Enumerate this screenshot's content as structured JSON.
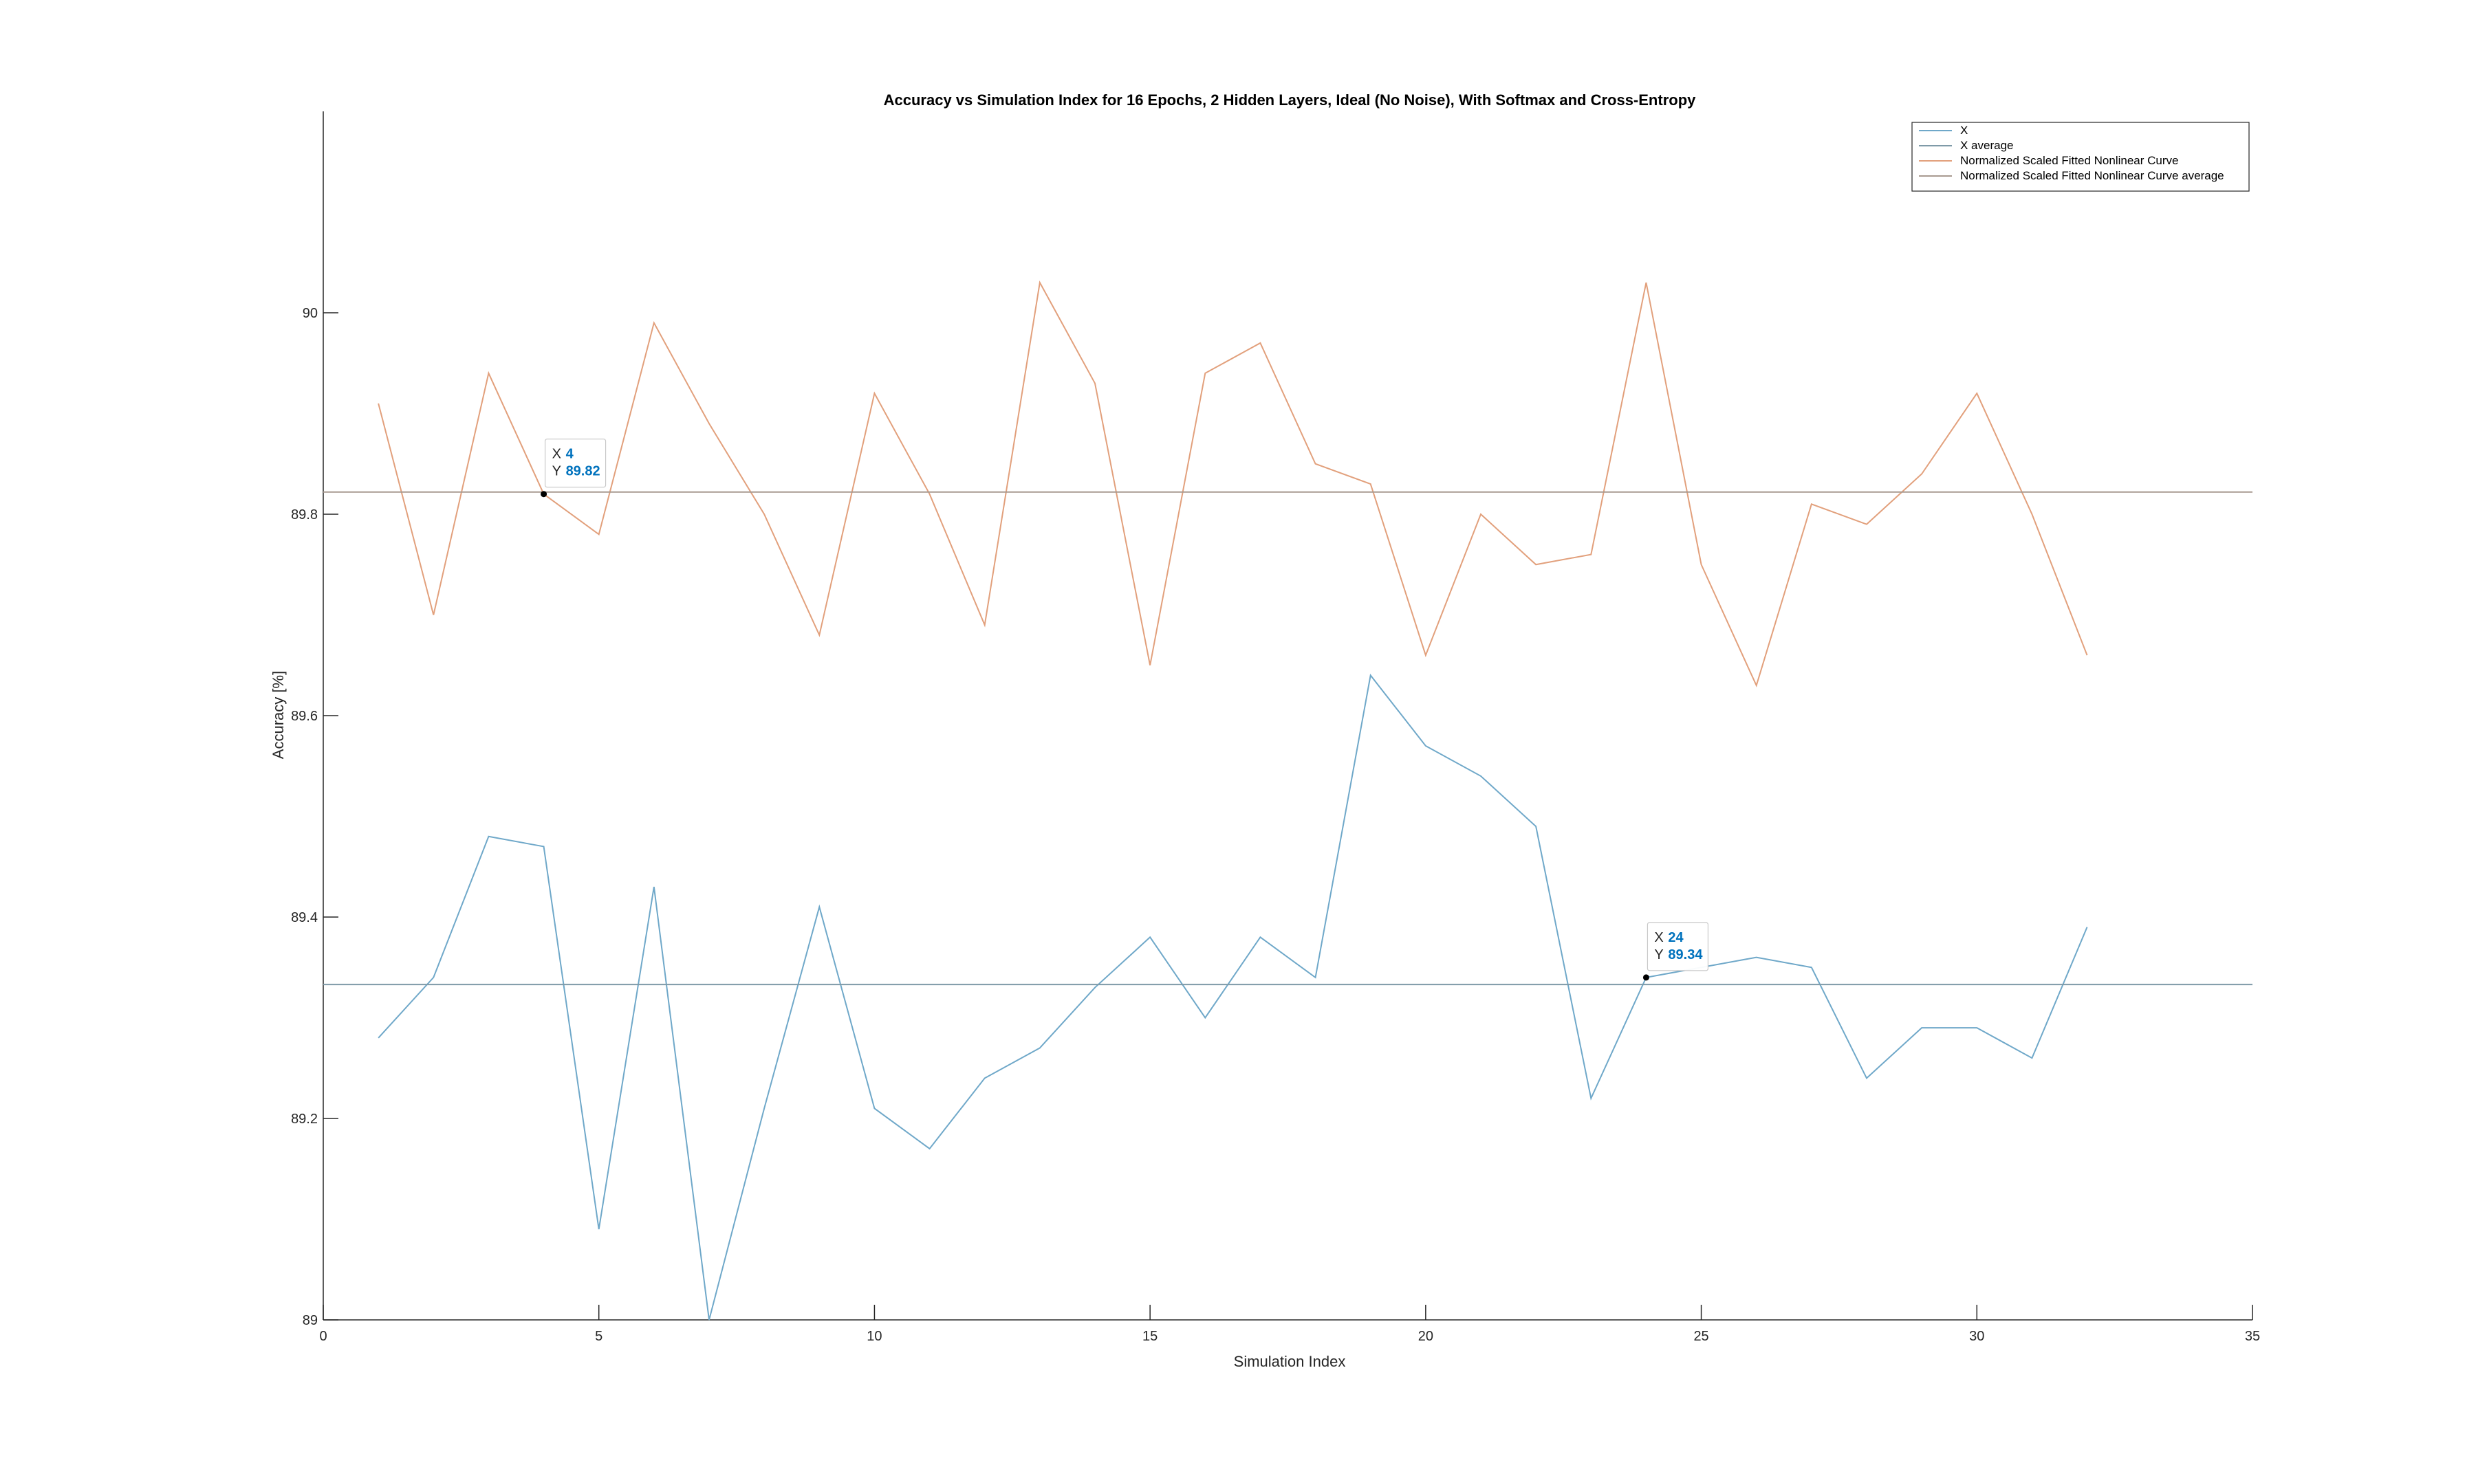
{
  "chart_data": {
    "type": "line",
    "title": "Accuracy vs Simulation Index for 16 Epochs, 2 Hidden Layers, Ideal (No Noise), With Softmax and Cross-Entropy",
    "xlabel": "Simulation Index",
    "ylabel": "Accuracy [%]",
    "xlim": [
      0,
      35
    ],
    "ylim": [
      89,
      90.2
    ],
    "xticks": [
      0,
      5,
      10,
      15,
      20,
      25,
      30,
      35
    ],
    "yticks": [
      89,
      89.2,
      89.4,
      89.6,
      89.8,
      90
    ],
    "grid": false,
    "legend_position": "top-right",
    "x": [
      1,
      2,
      3,
      4,
      5,
      6,
      7,
      8,
      9,
      10,
      11,
      12,
      13,
      14,
      15,
      16,
      17,
      18,
      19,
      20,
      21,
      22,
      23,
      24,
      25,
      26,
      27,
      28,
      29,
      30,
      31,
      32
    ],
    "series": [
      {
        "name": "X",
        "color": "#6fa8c9",
        "values": [
          89.28,
          89.34,
          89.48,
          89.47,
          89.09,
          89.43,
          89.0,
          89.21,
          89.41,
          89.21,
          89.17,
          89.24,
          89.27,
          89.33,
          89.38,
          89.3,
          89.38,
          89.34,
          89.64,
          89.57,
          89.54,
          89.49,
          89.22,
          89.34,
          89.35,
          89.36,
          89.35,
          89.24,
          89.29,
          89.29,
          89.26,
          89.39
        ]
      },
      {
        "name": "X average",
        "color": "#7f9aa8",
        "constant": 89.333
      },
      {
        "name": "Normalized Scaled Fitted Nonlinear Curve",
        "color": "#e2a07c",
        "values": [
          89.91,
          89.7,
          89.94,
          89.82,
          89.78,
          89.99,
          89.89,
          89.8,
          89.68,
          89.92,
          89.82,
          89.69,
          90.03,
          89.93,
          89.65,
          89.94,
          89.97,
          89.85,
          89.83,
          89.66,
          89.8,
          89.75,
          89.76,
          90.03,
          89.75,
          89.63,
          89.81,
          89.79,
          89.84,
          89.92,
          89.8,
          89.66
        ]
      },
      {
        "name": "Normalized Scaled Fitted Nonlinear Curve average",
        "color": "#a89a90",
        "constant": 89.822
      }
    ],
    "datatips": [
      {
        "x_label": "X",
        "x_value": "4",
        "y_label": "Y",
        "y_value": "89.82",
        "x": 4,
        "y": 89.82
      },
      {
        "x_label": "X",
        "x_value": "24",
        "y_label": "Y",
        "y_value": "89.34",
        "x": 24,
        "y": 89.34
      }
    ]
  }
}
